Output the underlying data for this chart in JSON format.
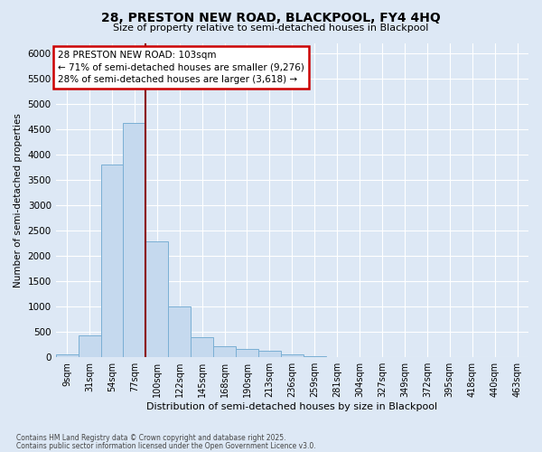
{
  "title1": "28, PRESTON NEW ROAD, BLACKPOOL, FY4 4HQ",
  "title2": "Size of property relative to semi-detached houses in Blackpool",
  "xlabel": "Distribution of semi-detached houses by size in Blackpool",
  "ylabel": "Number of semi-detached properties",
  "annotation_title": "28 PRESTON NEW ROAD: 103sqm",
  "annotation_line1": "← 71% of semi-detached houses are smaller (9,276)",
  "annotation_line2": "28% of semi-detached houses are larger (3,618) →",
  "footnote1": "Contains HM Land Registry data © Crown copyright and database right 2025.",
  "footnote2": "Contains public sector information licensed under the Open Government Licence v3.0.",
  "bar_labels": [
    "9sqm",
    "31sqm",
    "54sqm",
    "77sqm",
    "100sqm",
    "122sqm",
    "145sqm",
    "168sqm",
    "190sqm",
    "213sqm",
    "236sqm",
    "259sqm",
    "281sqm",
    "304sqm",
    "327sqm",
    "349sqm",
    "372sqm",
    "395sqm",
    "418sqm",
    "440sqm",
    "463sqm"
  ],
  "bar_values": [
    50,
    430,
    3800,
    4630,
    2280,
    1000,
    390,
    220,
    160,
    130,
    50,
    20,
    0,
    0,
    0,
    0,
    0,
    0,
    0,
    0,
    0
  ],
  "bar_color": "#c5d9ee",
  "bar_edge_color": "#7aafd4",
  "vline_color": "#8b0000",
  "vline_x_index": 3.5,
  "ylim_max": 6200,
  "ytick_step": 500,
  "background_color": "#dde8f5",
  "grid_color": "#ffffff",
  "annotation_box_facecolor": "#ffffff",
  "annotation_box_edgecolor": "#cc0000"
}
